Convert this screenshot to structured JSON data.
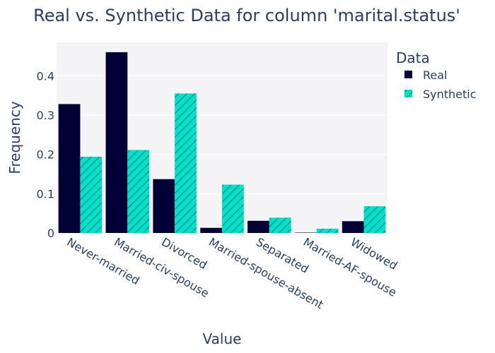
{
  "chart_data": {
    "type": "bar",
    "title": "Real vs. Synthetic Data for column 'marital.status'",
    "xlabel": "Value",
    "ylabel": "Frequency",
    "categories": [
      "Never-married",
      "Married-civ-spouse",
      "Divorced",
      "Married-spouse-absent",
      "Separated",
      "Married-AF-spouse",
      "Widowed"
    ],
    "series": [
      {
        "name": "Real",
        "color": "#000036",
        "pattern": "solid",
        "values": [
          0.328,
          0.46,
          0.137,
          0.013,
          0.031,
          0.001,
          0.03
        ]
      },
      {
        "name": "Synthetic",
        "color": "#01e0c9",
        "pattern": "diagonal-hatch",
        "values": [
          0.194,
          0.211,
          0.355,
          0.123,
          0.039,
          0.011,
          0.068
        ]
      }
    ],
    "ylim": [
      0,
      0.485
    ],
    "yticks": [
      0,
      0.1,
      0.2,
      0.3,
      0.4
    ],
    "ytick_labels": [
      "0",
      "0.1",
      "0.2",
      "0.3",
      "0.4"
    ],
    "grid": true,
    "plot_background": "#f4f4f7",
    "legend": {
      "title": "Data",
      "placement": "top-right-outside"
    }
  }
}
